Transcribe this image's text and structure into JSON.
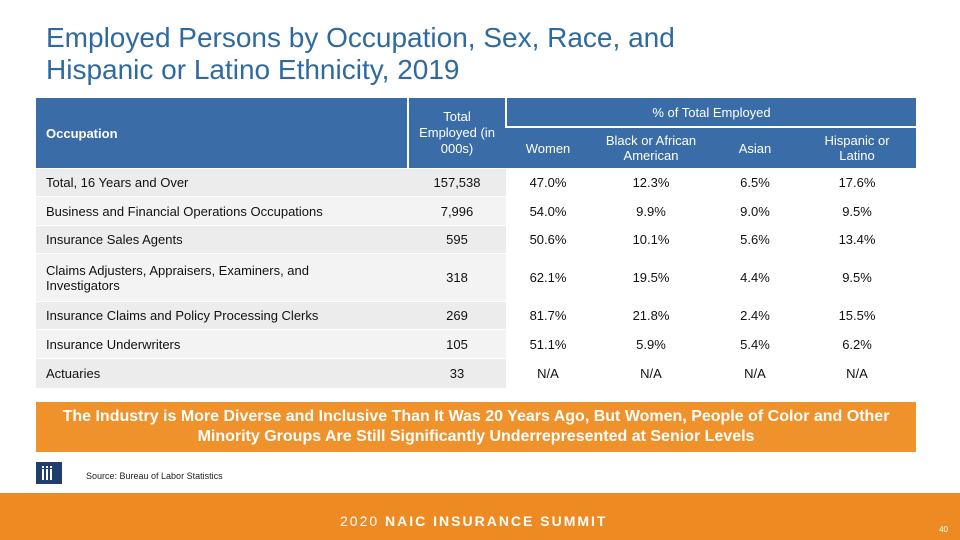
{
  "title": {
    "line1": "Employed Persons by Occupation, Sex, Race, and",
    "line2": "Hispanic or Latino Ethnicity, 2019"
  },
  "table": {
    "headers": {
      "occupation": "Occupation",
      "total": "Total Employed (in 000s)",
      "group": "% of Total Employed",
      "women": "Women",
      "black": "Black or African American",
      "asian": "Asian",
      "hispanic": "Hispanic or Latino"
    },
    "rows": [
      {
        "name": "Total, 16 Years and Over",
        "total": "157,538",
        "women": "47.0%",
        "black": "12.3%",
        "asian": "6.5%",
        "hispanic": "17.6%"
      },
      {
        "name": "Business and Financial Operations Occupations",
        "total": "7,996",
        "women": "54.0%",
        "black": "9.9%",
        "asian": "9.0%",
        "hispanic": "9.5%"
      },
      {
        "name": "Insurance Sales Agents",
        "total": "595",
        "women": "50.6%",
        "black": "10.1%",
        "asian": "5.6%",
        "hispanic": "13.4%"
      },
      {
        "name": "Claims Adjusters, Appraisers, Examiners, and Investigators",
        "total": "318",
        "women": "62.1%",
        "black": "19.5%",
        "asian": "4.4%",
        "hispanic": "9.5%"
      },
      {
        "name": "Insurance Claims and Policy Processing Clerks",
        "total": "269",
        "women": "81.7%",
        "black": "21.8%",
        "asian": "2.4%",
        "hispanic": "15.5%"
      },
      {
        "name": "Insurance Underwriters",
        "total": "105",
        "women": "51.1%",
        "black": "5.9%",
        "asian": "5.4%",
        "hispanic": "6.2%"
      },
      {
        "name": "Actuaries",
        "total": "33",
        "women": "N/A",
        "black": "N/A",
        "asian": "N/A",
        "hispanic": "N/A"
      }
    ]
  },
  "banner": "The Industry is More Diverse and Inclusive Than It Was 20 Years Ago, But Women, People of Color and Other Minority Groups Are Still Significantly Underrepresented at Senior Levels",
  "source": "Source: Bureau of Labor Statistics",
  "footer": {
    "year": "2020",
    "event": "NAIC INSURANCE SUMMIT",
    "page": "40"
  },
  "colors": {
    "title": "#2e6a9e",
    "header_bg": "#3a6ca8",
    "banner_bg": "#f0922b",
    "footer_bg": "#ee8a22"
  }
}
